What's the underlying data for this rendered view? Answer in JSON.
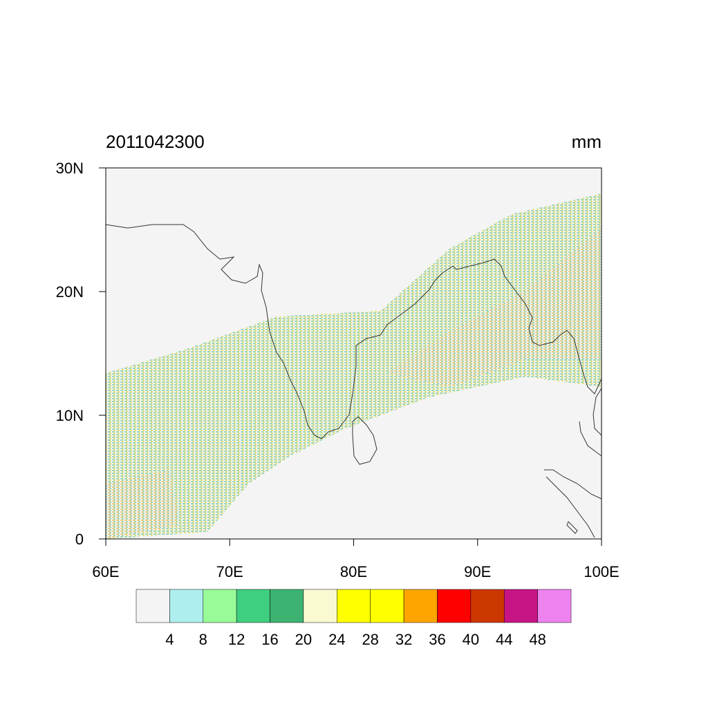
{
  "title": "2011042300",
  "units": "mm",
  "map": {
    "xlim": [
      60,
      100
    ],
    "ylim": [
      0,
      30
    ],
    "lon_ticks": [
      {
        "value": 60,
        "label": "60E"
      },
      {
        "value": 70,
        "label": "70E"
      },
      {
        "value": 80,
        "label": "80E"
      },
      {
        "value": 90,
        "label": "90E"
      },
      {
        "value": 100,
        "label": "100E"
      }
    ],
    "lat_ticks": [
      {
        "value": 0,
        "label": "0"
      },
      {
        "value": 10,
        "label": "10N"
      },
      {
        "value": 20,
        "label": "20N"
      },
      {
        "value": 30,
        "label": "30N"
      }
    ]
  },
  "colorbar": {
    "colors": [
      "#f4f4f4",
      "#afeeee",
      "#98fb98",
      "#3fcf80",
      "#3cb371",
      "#fafad2",
      "#ffff00",
      "#ffff00",
      "#ffa500",
      "#ff0000",
      "#cd3700",
      "#c71585",
      "#ee82ee"
    ],
    "labels": [
      4,
      8,
      12,
      16,
      20,
      24,
      28,
      32,
      36,
      40,
      44,
      48
    ]
  }
}
